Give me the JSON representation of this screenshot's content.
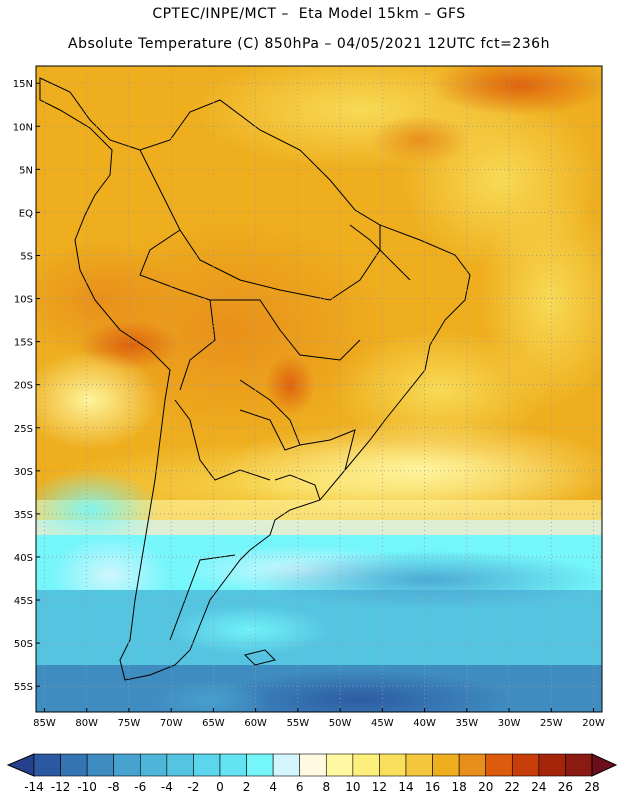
{
  "header": {
    "line1": "CPTEC/INPE/MCT –  Eta Model 15km – GFS",
    "line2": "Absolute Temperature (C) 850hPa – 04/05/2021 12UTC fct=236h"
  },
  "map": {
    "lat_labels": [
      "15N",
      "10N",
      "5N",
      "EQ",
      "5S",
      "10S",
      "15S",
      "20S",
      "25S",
      "30S",
      "35S",
      "40S",
      "45S",
      "50S",
      "55S"
    ],
    "lon_labels": [
      "85W",
      "80W",
      "75W",
      "70W",
      "65W",
      "60W",
      "55W",
      "50W",
      "45W",
      "40W",
      "35W",
      "30W",
      "25W",
      "20W"
    ],
    "lat_values": [
      15,
      10,
      5,
      0,
      -5,
      -10,
      -15,
      -20,
      -25,
      -30,
      -35,
      -40,
      -45,
      -50,
      -55
    ],
    "lon_values": [
      -85,
      -80,
      -75,
      -70,
      -65,
      -60,
      -55,
      -50,
      -45,
      -40,
      -35,
      -30,
      -25,
      -20
    ],
    "extent": {
      "lon_min": -86,
      "lon_max": -19,
      "lat_min": -58,
      "lat_max": 17
    }
  },
  "colorbar": {
    "labels": [
      "-14",
      "-12",
      "-10",
      "-8",
      "-6",
      "-4",
      "-2",
      "0",
      "2",
      "4",
      "6",
      "8",
      "10",
      "12",
      "14",
      "16",
      "18",
      "20",
      "22",
      "24",
      "26",
      "28"
    ],
    "colors": [
      "#25418e",
      "#2b58a0",
      "#3574b2",
      "#3f8cc1",
      "#48a2cf",
      "#4fb6d9",
      "#55c4e1",
      "#5bd6ec",
      "#64e4f2",
      "#74f6fb",
      "#d3f6fd",
      "#fffae0",
      "#fff7a2",
      "#fdef7c",
      "#f9df5c",
      "#f4c73e",
      "#eeae1e",
      "#e88e1a",
      "#dd5b0c",
      "#c63d0a",
      "#a5250a",
      "#8a1a12",
      "#6b0f1c"
    ]
  }
}
